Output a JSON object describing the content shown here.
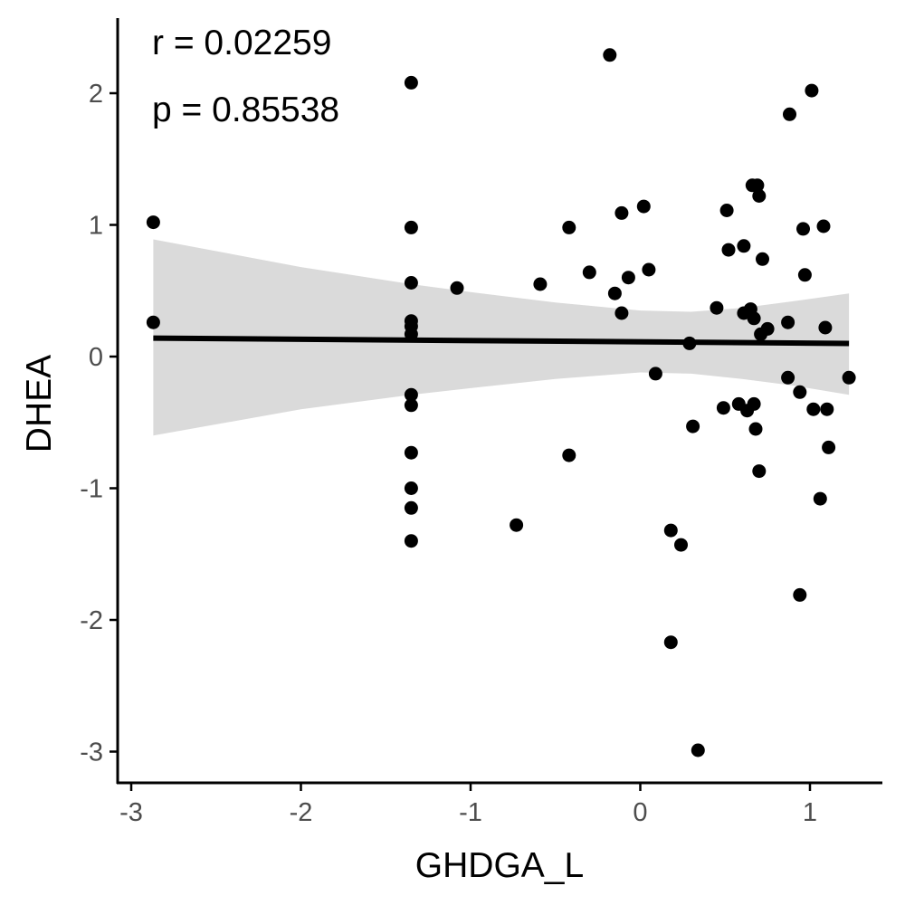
{
  "chart_data": {
    "type": "scatter",
    "xlabel": "GHDGA_L",
    "ylabel": "DHEA",
    "xlim": [
      -3.0,
      1.4
    ],
    "ylim": [
      -3.25,
      2.55
    ],
    "x_ticks": [
      -3,
      -2,
      -1,
      0,
      1
    ],
    "y_ticks": [
      -3,
      -2,
      -1,
      0,
      1,
      2
    ],
    "x_tick_labels": [
      "-3",
      "-2",
      "-1",
      "0",
      "1"
    ],
    "y_tick_labels": [
      "-3",
      "-2",
      "-1",
      "0",
      "1",
      "2"
    ],
    "annotations": [
      "r = 0.02259",
      "p = 0.85538"
    ],
    "grid": false,
    "legend": "none",
    "colors": {
      "points": "#000000",
      "line": "#000000",
      "band": "#d3d3d3",
      "axis": "#000000",
      "tick_label": "#4d4d4d"
    },
    "points": [
      {
        "x": -2.87,
        "y": 1.02
      },
      {
        "x": -2.87,
        "y": 0.26
      },
      {
        "x": -1.35,
        "y": 2.08
      },
      {
        "x": -1.35,
        "y": 0.98
      },
      {
        "x": -1.35,
        "y": 0.56
      },
      {
        "x": -1.35,
        "y": 0.27
      },
      {
        "x": -1.35,
        "y": 0.23
      },
      {
        "x": -1.35,
        "y": 0.17
      },
      {
        "x": -1.35,
        "y": -0.29
      },
      {
        "x": -1.35,
        "y": -0.37
      },
      {
        "x": -1.35,
        "y": -0.73
      },
      {
        "x": -1.35,
        "y": -1.0
      },
      {
        "x": -1.35,
        "y": -1.15
      },
      {
        "x": -1.35,
        "y": -1.4
      },
      {
        "x": -1.08,
        "y": 0.52
      },
      {
        "x": -0.73,
        "y": -1.28
      },
      {
        "x": -0.59,
        "y": 0.55
      },
      {
        "x": -0.42,
        "y": 0.98
      },
      {
        "x": -0.42,
        "y": -0.75
      },
      {
        "x": -0.3,
        "y": 0.64
      },
      {
        "x": -0.18,
        "y": 2.29
      },
      {
        "x": -0.15,
        "y": 0.48
      },
      {
        "x": -0.11,
        "y": 1.09
      },
      {
        "x": -0.11,
        "y": 0.33
      },
      {
        "x": -0.07,
        "y": 0.6
      },
      {
        "x": 0.02,
        "y": 1.14
      },
      {
        "x": 0.05,
        "y": 0.66
      },
      {
        "x": 0.09,
        "y": -0.13
      },
      {
        "x": 0.18,
        "y": -1.32
      },
      {
        "x": 0.18,
        "y": -2.17
      },
      {
        "x": 0.24,
        "y": -1.43
      },
      {
        "x": 0.29,
        "y": 0.1
      },
      {
        "x": 0.31,
        "y": -0.53
      },
      {
        "x": 0.34,
        "y": -2.99
      },
      {
        "x": 0.45,
        "y": 0.37
      },
      {
        "x": 0.49,
        "y": -0.39
      },
      {
        "x": 0.51,
        "y": 1.11
      },
      {
        "x": 0.52,
        "y": 0.81
      },
      {
        "x": 0.58,
        "y": -0.36
      },
      {
        "x": 0.61,
        "y": 0.84
      },
      {
        "x": 0.61,
        "y": 0.33
      },
      {
        "x": 0.63,
        "y": -0.41
      },
      {
        "x": 0.65,
        "y": 0.36
      },
      {
        "x": 0.66,
        "y": 1.3
      },
      {
        "x": 0.67,
        "y": -0.36
      },
      {
        "x": 0.67,
        "y": 0.29
      },
      {
        "x": 0.68,
        "y": -0.55
      },
      {
        "x": 0.69,
        "y": 1.3
      },
      {
        "x": 0.7,
        "y": 1.22
      },
      {
        "x": 0.7,
        "y": -0.87
      },
      {
        "x": 0.71,
        "y": 0.17
      },
      {
        "x": 0.72,
        "y": 0.74
      },
      {
        "x": 0.75,
        "y": 0.21
      },
      {
        "x": 0.87,
        "y": 0.26
      },
      {
        "x": 0.87,
        "y": -0.16
      },
      {
        "x": 0.88,
        "y": 1.84
      },
      {
        "x": 0.94,
        "y": -0.27
      },
      {
        "x": 0.94,
        "y": -1.81
      },
      {
        "x": 0.96,
        "y": 0.97
      },
      {
        "x": 0.97,
        "y": 0.62
      },
      {
        "x": 1.01,
        "y": 2.02
      },
      {
        "x": 1.02,
        "y": -0.4
      },
      {
        "x": 1.06,
        "y": -1.08
      },
      {
        "x": 1.08,
        "y": 0.99
      },
      {
        "x": 1.09,
        "y": 0.22
      },
      {
        "x": 1.1,
        "y": -0.4
      },
      {
        "x": 1.11,
        "y": -0.69
      },
      {
        "x": 1.23,
        "y": -0.16
      }
    ],
    "fit_line": {
      "x": [
        -2.87,
        1.23
      ],
      "y": [
        0.14,
        0.1
      ]
    },
    "confidence_band": {
      "x": [
        -2.87,
        -2.0,
        -1.35,
        -1.0,
        -0.5,
        0.0,
        0.3,
        0.6,
        0.9,
        1.23
      ],
      "upper": [
        0.89,
        0.68,
        0.55,
        0.49,
        0.41,
        0.35,
        0.34,
        0.37,
        0.42,
        0.48
      ],
      "lower": [
        -0.6,
        -0.4,
        -0.29,
        -0.24,
        -0.17,
        -0.12,
        -0.13,
        -0.17,
        -0.22,
        -0.29
      ]
    }
  }
}
